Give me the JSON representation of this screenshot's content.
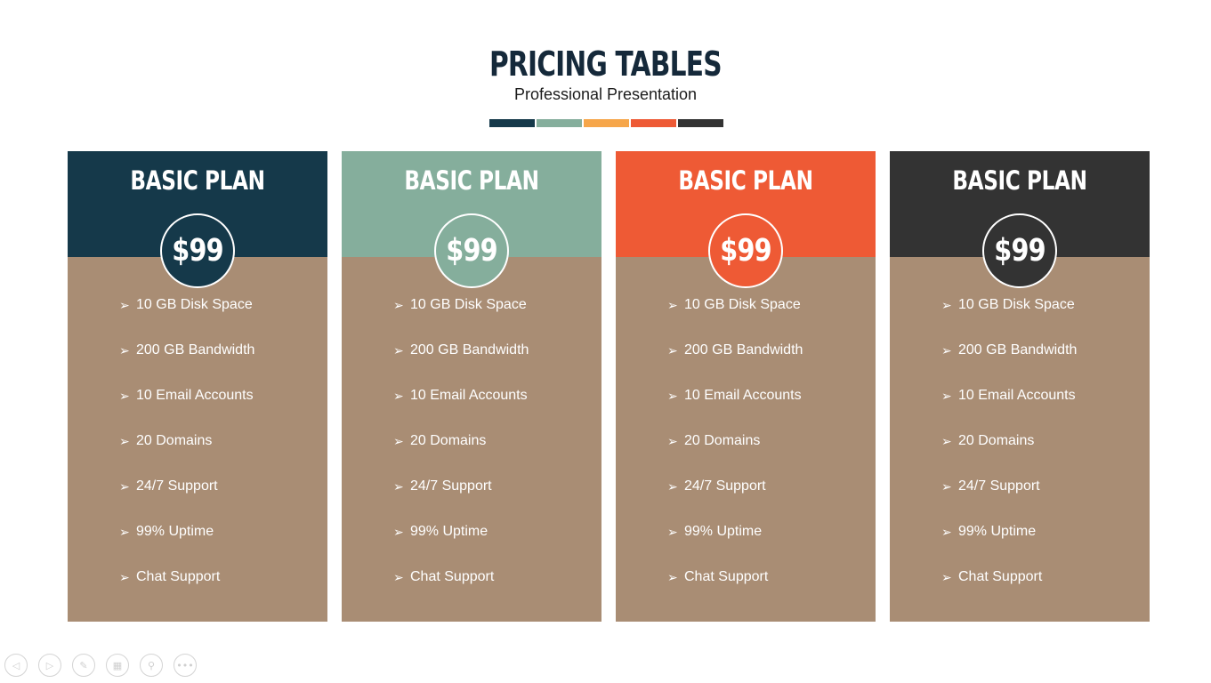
{
  "slide": {
    "title": "PRICING TABLES",
    "subtitle": "Professional Presentation",
    "swatches": [
      "#15394a",
      "#85ae9c",
      "#f6a64a",
      "#ee5a35",
      "#333333"
    ]
  },
  "colors": {
    "body_bg": "#a98d74",
    "text": "#ffffff"
  },
  "feature_icon": "arrowhead-icon",
  "cards": [
    {
      "title": "BASIC PLAN",
      "price": "$99",
      "color": "#15394a",
      "features": [
        "10 GB Disk Space",
        "200 GB Bandwidth",
        "10 Email Accounts",
        "20 Domains",
        "24/7 Support",
        "99% Uptime",
        "Chat Support"
      ]
    },
    {
      "title": "BASIC PLAN",
      "price": "$99",
      "color": "#85ae9c",
      "features": [
        "10 GB Disk Space",
        "200 GB Bandwidth",
        "10 Email Accounts",
        "20 Domains",
        "24/7 Support",
        "99% Uptime",
        "Chat Support"
      ]
    },
    {
      "title": "BASIC PLAN",
      "price": "$99",
      "color": "#ee5a35",
      "features": [
        "10 GB Disk Space",
        "200 GB Bandwidth",
        "10 Email Accounts",
        "20 Domains",
        "24/7 Support",
        "99% Uptime",
        "Chat Support"
      ]
    },
    {
      "title": "BASIC PLAN",
      "price": "$99",
      "color": "#333333",
      "features": [
        "10 GB Disk Space",
        "200 GB Bandwidth",
        "10 Email Accounts",
        "20 Domains",
        "24/7 Support",
        "99% Uptime",
        "Chat Support"
      ]
    }
  ],
  "controls": [
    {
      "icon": "previous-icon",
      "glyph": "◁"
    },
    {
      "icon": "next-icon",
      "glyph": "▷"
    },
    {
      "icon": "pen-icon",
      "glyph": "✎"
    },
    {
      "icon": "slides-icon",
      "glyph": "▦"
    },
    {
      "icon": "zoom-icon",
      "glyph": "⚲"
    },
    {
      "icon": "more-icon",
      "glyph": "•••"
    }
  ]
}
